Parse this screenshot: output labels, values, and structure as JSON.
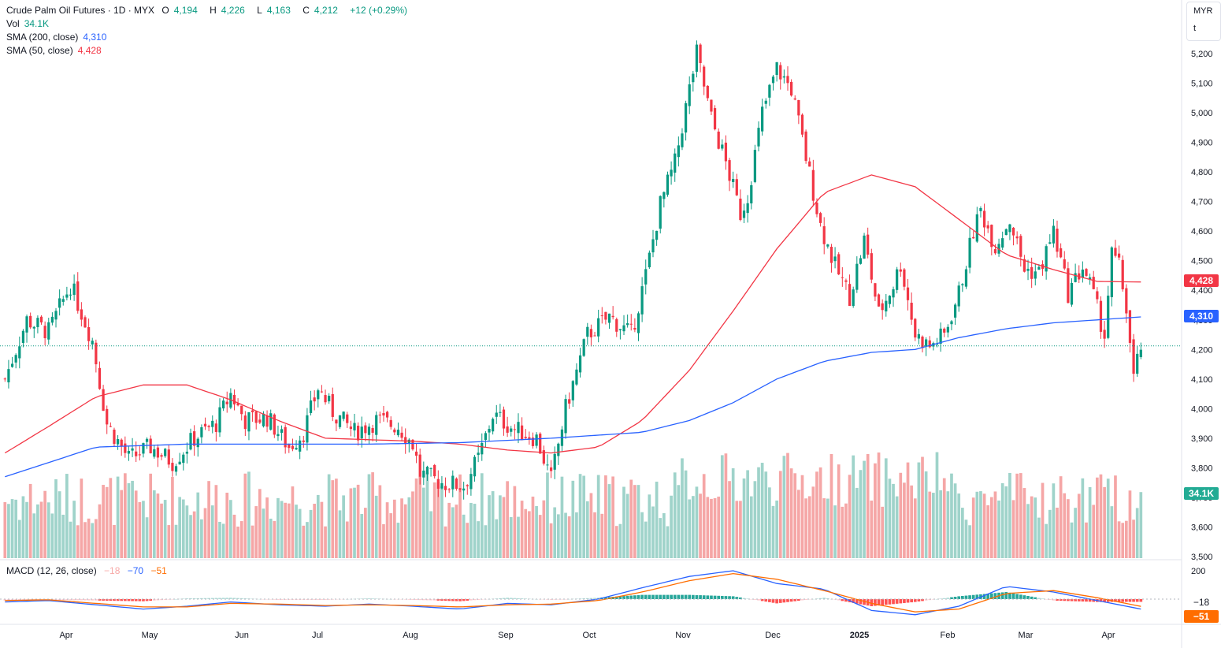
{
  "header": {
    "title": "Crude Palm Oil Futures · 1D · MYX",
    "open_label": "O",
    "open": "4,194",
    "high_label": "H",
    "high": "4,226",
    "low_label": "L",
    "low": "4,163",
    "close_label": "C",
    "close": "4,212",
    "change": "+12 (+0.29%)",
    "vol_label": "Vol",
    "vol": "34.1K",
    "sma200_label": "SMA (200, close)",
    "sma200": "4,310",
    "sma50_label": "SMA (50, close)",
    "sma50": "4,428",
    "macd_label": "MACD (12, 26, close)",
    "macd_hist": "−18",
    "macd_line": "−70",
    "macd_signal": "−51"
  },
  "currency": {
    "code": "MYR",
    "unit": "t"
  },
  "tags": {
    "sma50": "4,428",
    "sma200": "4,310",
    "volume": "34.1K",
    "macd_hist": "−18",
    "macd_signal": "−51"
  },
  "colors": {
    "up": "#089981",
    "down": "#f23645",
    "up_vol": "#9fd3ca",
    "down_vol": "#f5a6a6",
    "sma50": "#f23645",
    "sma200": "#2962ff",
    "macd": "#2962ff",
    "signal": "#ff6d00"
  },
  "chart_data": {
    "type": "candlestick",
    "price_axis": {
      "ticks": [
        "5,200",
        "5,100",
        "5,000",
        "4,900",
        "4,800",
        "4,700",
        "4,600",
        "4,500",
        "4,400",
        "4,300",
        "4,200",
        "4,100",
        "4,000",
        "3,900",
        "3,800",
        "3,700",
        "3,600",
        "3,500"
      ],
      "range": [
        3500,
        5200
      ]
    },
    "macd_axis": {
      "ticks": [
        "200"
      ]
    },
    "time_axis": [
      "Apr",
      "May",
      "Jun",
      "Jul",
      "Aug",
      "Sep",
      "Oct",
      "Nov",
      "Dec",
      "2025",
      "Feb",
      "Mar",
      "Apr"
    ],
    "last_price": 4212,
    "sma50_waypoints": [
      [
        0,
        3850
      ],
      [
        12,
        3940
      ],
      [
        25,
        4040
      ],
      [
        38,
        4080
      ],
      [
        50,
        4080
      ],
      [
        62,
        4030
      ],
      [
        75,
        3960
      ],
      [
        88,
        3900
      ],
      [
        100,
        3895
      ],
      [
        112,
        3890
      ],
      [
        125,
        3880
      ],
      [
        138,
        3860
      ],
      [
        150,
        3850
      ],
      [
        163,
        3870
      ],
      [
        175,
        3960
      ],
      [
        188,
        4130
      ],
      [
        200,
        4330
      ],
      [
        212,
        4540
      ],
      [
        225,
        4730
      ],
      [
        238,
        4790
      ],
      [
        250,
        4750
      ],
      [
        262,
        4640
      ],
      [
        275,
        4520
      ],
      [
        288,
        4470
      ],
      [
        300,
        4430
      ],
      [
        312,
        4428
      ]
    ],
    "sma200_waypoints": [
      [
        0,
        3770
      ],
      [
        25,
        3870
      ],
      [
        50,
        3880
      ],
      [
        75,
        3880
      ],
      [
        100,
        3880
      ],
      [
        125,
        3885
      ],
      [
        150,
        3900
      ],
      [
        175,
        3920
      ],
      [
        188,
        3960
      ],
      [
        200,
        4020
      ],
      [
        212,
        4100
      ],
      [
        225,
        4160
      ],
      [
        238,
        4190
      ],
      [
        250,
        4200
      ],
      [
        262,
        4240
      ],
      [
        275,
        4270
      ],
      [
        288,
        4290
      ],
      [
        312,
        4310
      ]
    ],
    "close_waypoints": [
      [
        0,
        4100
      ],
      [
        6,
        4300
      ],
      [
        12,
        4260
      ],
      [
        18,
        4420
      ],
      [
        24,
        4230
      ],
      [
        28,
        3950
      ],
      [
        34,
        3830
      ],
      [
        40,
        3870
      ],
      [
        46,
        3820
      ],
      [
        52,
        3900
      ],
      [
        58,
        3950
      ],
      [
        62,
        4050
      ],
      [
        66,
        3960
      ],
      [
        72,
        3970
      ],
      [
        78,
        3870
      ],
      [
        82,
        3920
      ],
      [
        86,
        4070
      ],
      [
        90,
        3990
      ],
      [
        96,
        3920
      ],
      [
        102,
        3960
      ],
      [
        108,
        3940
      ],
      [
        112,
        3880
      ],
      [
        114,
        3780
      ],
      [
        120,
        3750
      ],
      [
        126,
        3740
      ],
      [
        130,
        3830
      ],
      [
        134,
        3980
      ],
      [
        140,
        3930
      ],
      [
        146,
        3900
      ],
      [
        150,
        3760
      ],
      [
        154,
        4000
      ],
      [
        160,
        4250
      ],
      [
        166,
        4310
      ],
      [
        172,
        4250
      ],
      [
        176,
        4450
      ],
      [
        180,
        4690
      ],
      [
        184,
        4830
      ],
      [
        188,
        5080
      ],
      [
        190,
        5200
      ],
      [
        194,
        4980
      ],
      [
        198,
        4830
      ],
      [
        202,
        4660
      ],
      [
        204,
        4720
      ],
      [
        208,
        5000
      ],
      [
        212,
        5150
      ],
      [
        216,
        5080
      ],
      [
        220,
        4850
      ],
      [
        224,
        4620
      ],
      [
        228,
        4480
      ],
      [
        232,
        4380
      ],
      [
        236,
        4570
      ],
      [
        240,
        4320
      ],
      [
        244,
        4420
      ],
      [
        246,
        4490
      ],
      [
        250,
        4250
      ],
      [
        254,
        4210
      ],
      [
        258,
        4250
      ],
      [
        262,
        4390
      ],
      [
        266,
        4600
      ],
      [
        268,
        4670
      ],
      [
        272,
        4550
      ],
      [
        276,
        4640
      ],
      [
        280,
        4470
      ],
      [
        284,
        4460
      ],
      [
        288,
        4600
      ],
      [
        292,
        4390
      ],
      [
        296,
        4480
      ],
      [
        298,
        4420
      ],
      [
        302,
        4250
      ],
      [
        304,
        4520
      ],
      [
        306,
        4480
      ],
      [
        308,
        4340
      ],
      [
        310,
        4100
      ],
      [
        312,
        4212
      ]
    ],
    "macd_waypoints": [
      [
        0,
        -20
      ],
      [
        12,
        -10
      ],
      [
        25,
        -40
      ],
      [
        38,
        -70
      ],
      [
        50,
        -50
      ],
      [
        62,
        -20
      ],
      [
        75,
        -40
      ],
      [
        88,
        -50
      ],
      [
        100,
        -35
      ],
      [
        112,
        -50
      ],
      [
        125,
        -70
      ],
      [
        138,
        -30
      ],
      [
        150,
        -40
      ],
      [
        163,
        0
      ],
      [
        175,
        80
      ],
      [
        188,
        160
      ],
      [
        200,
        200
      ],
      [
        212,
        110
      ],
      [
        225,
        70
      ],
      [
        238,
        -80
      ],
      [
        250,
        -110
      ],
      [
        262,
        -50
      ],
      [
        275,
        90
      ],
      [
        288,
        50
      ],
      [
        300,
        -10
      ],
      [
        312,
        -70
      ]
    ],
    "signal_waypoints": [
      [
        0,
        -10
      ],
      [
        12,
        -5
      ],
      [
        25,
        -30
      ],
      [
        38,
        -55
      ],
      [
        50,
        -55
      ],
      [
        62,
        -30
      ],
      [
        75,
        -35
      ],
      [
        88,
        -45
      ],
      [
        100,
        -40
      ],
      [
        112,
        -45
      ],
      [
        125,
        -55
      ],
      [
        138,
        -40
      ],
      [
        150,
        -35
      ],
      [
        163,
        -10
      ],
      [
        175,
        50
      ],
      [
        188,
        130
      ],
      [
        200,
        180
      ],
      [
        212,
        140
      ],
      [
        225,
        60
      ],
      [
        238,
        -30
      ],
      [
        250,
        -90
      ],
      [
        262,
        -70
      ],
      [
        275,
        40
      ],
      [
        288,
        60
      ],
      [
        300,
        10
      ],
      [
        312,
        -51
      ]
    ],
    "n_bars": 312
  }
}
